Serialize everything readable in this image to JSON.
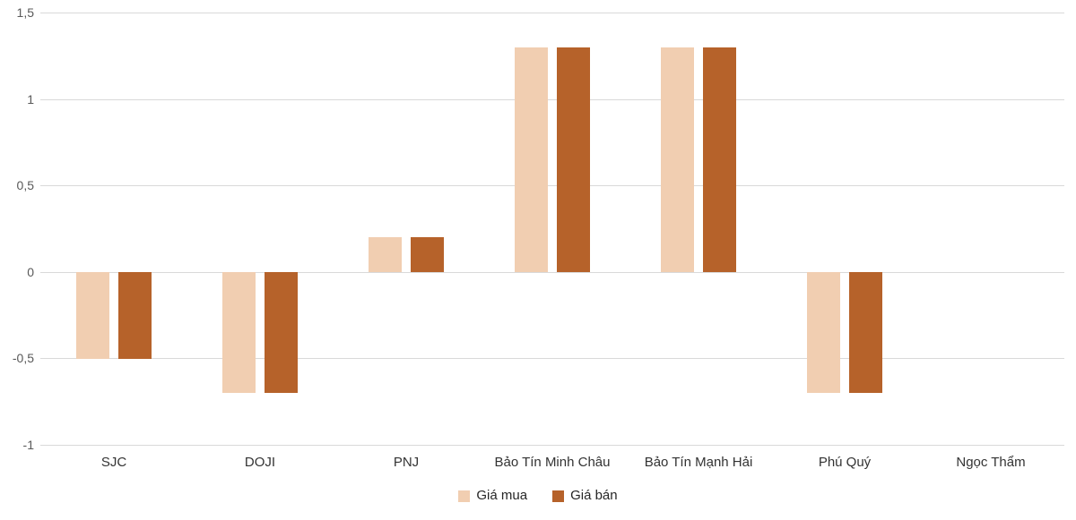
{
  "chart_data": {
    "type": "bar",
    "title": "",
    "xlabel": "",
    "ylabel": "",
    "categories": [
      "SJC",
      "DOJI",
      "PNJ",
      "Bảo Tín Minh Châu",
      "Bảo Tín Mạnh Hải",
      "Phú Quý",
      "Ngọc Thẩm"
    ],
    "series": [
      {
        "name": "Giá mua",
        "color": "#F1CEB1",
        "values": [
          -0.5,
          -0.7,
          0.2,
          1.3,
          1.3,
          -0.7,
          0
        ]
      },
      {
        "name": "Giá bán",
        "color": "#B6622A",
        "values": [
          -0.5,
          -0.7,
          0.2,
          1.3,
          1.3,
          -0.7,
          0
        ]
      }
    ],
    "ylim": [
      -1,
      1.5
    ],
    "yticks": [
      {
        "value": 1.5,
        "label": "1,5"
      },
      {
        "value": 1,
        "label": "1"
      },
      {
        "value": 0.5,
        "label": "0,5"
      },
      {
        "value": 0,
        "label": "0"
      },
      {
        "value": -0.5,
        "label": "-0,5"
      },
      {
        "value": -1,
        "label": "-1"
      }
    ],
    "grid": true,
    "legend_position": "bottom",
    "colors": {
      "gridline": "#D9D9D9",
      "axis_tick_text": "#595959",
      "category_text": "#333333",
      "legend_text": "#262626",
      "background": "#FFFFFF"
    }
  }
}
